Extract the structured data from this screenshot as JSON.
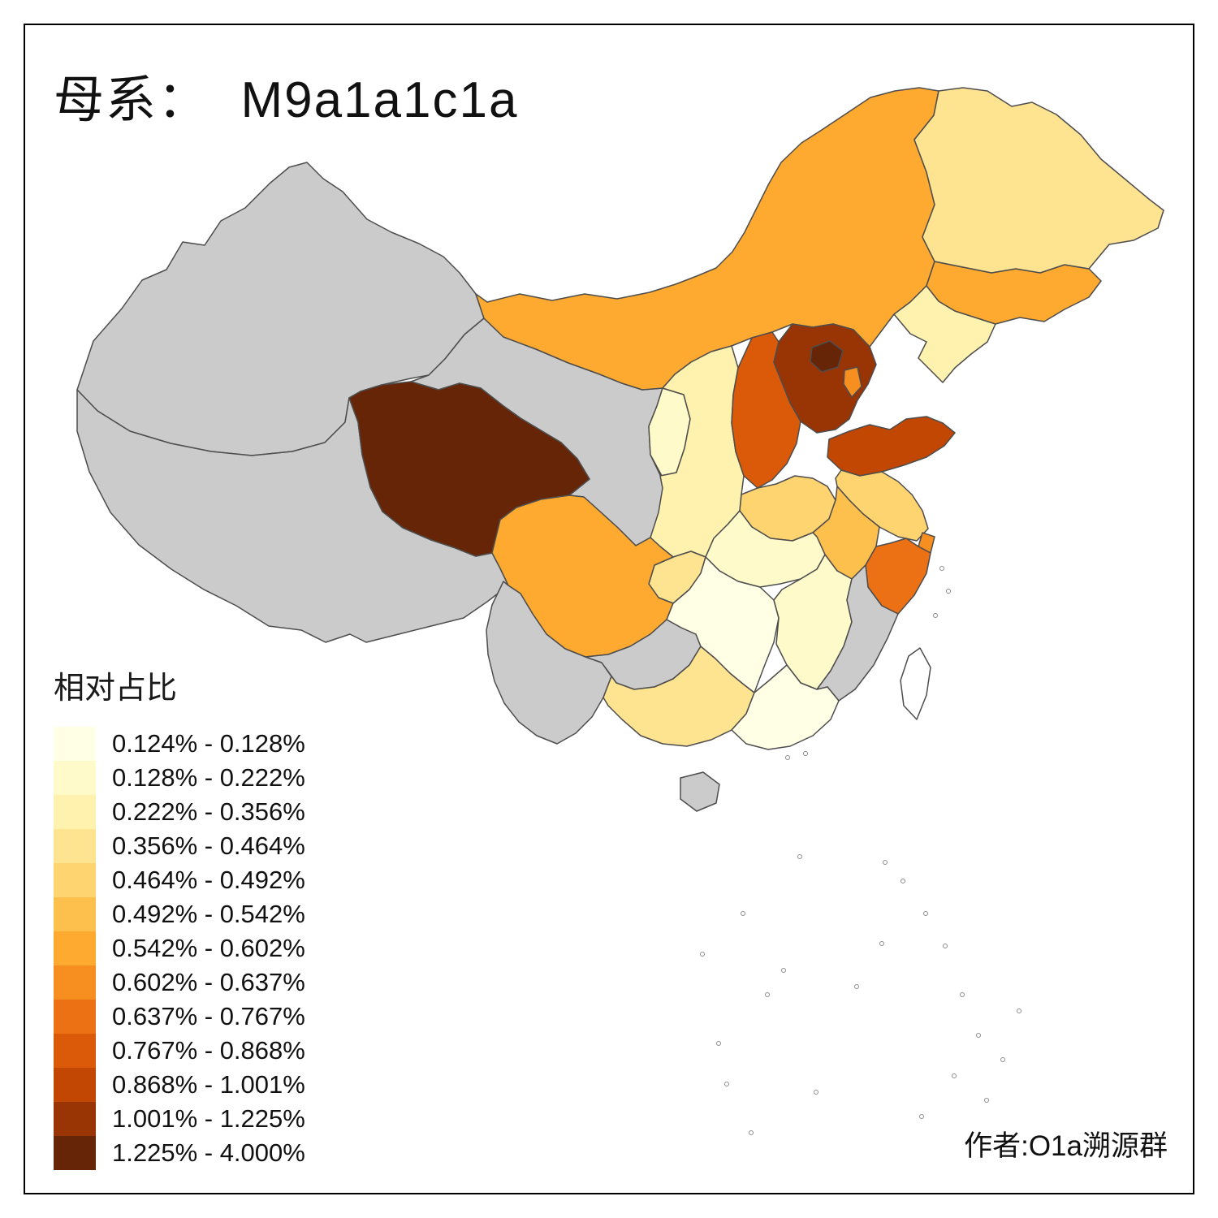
{
  "title": {
    "label": "母系：  M9a1a1c1a"
  },
  "legend": {
    "title": "相对占比",
    "bins": [
      {
        "label": "0.124% - 0.128%",
        "color": "#FFFFE5"
      },
      {
        "label": "0.128% - 0.222%",
        "color": "#FFFAC9"
      },
      {
        "label": "0.222% - 0.356%",
        "color": "#FFF2AE"
      },
      {
        "label": "0.356% - 0.464%",
        "color": "#FEE391"
      },
      {
        "label": "0.464% - 0.492%",
        "color": "#FED470"
      },
      {
        "label": "0.492% - 0.542%",
        "color": "#FEC04C"
      },
      {
        "label": "0.542% - 0.602%",
        "color": "#FEA92F"
      },
      {
        "label": "0.602% - 0.637%",
        "color": "#F78E20"
      },
      {
        "label": "0.637% - 0.767%",
        "color": "#EC7014"
      },
      {
        "label": "0.767% - 0.868%",
        "color": "#DA5A0A"
      },
      {
        "label": "0.868% - 1.001%",
        "color": "#C24702"
      },
      {
        "label": "1.001% - 1.225%",
        "color": "#993404"
      },
      {
        "label": "1.225% - 4.000%",
        "color": "#662506"
      }
    ]
  },
  "credit": {
    "label": "作者:O1a溯源群"
  },
  "map": {
    "background": "#FFFFFF",
    "no_data_color": "#CBCBCB",
    "border_color": "#4D4D4D",
    "frame_color": "#000000",
    "provinces": {
      "xinjiang": {
        "bin": null,
        "color": null
      },
      "tibet": {
        "bin": null,
        "color": null
      },
      "gansu": {
        "bin": null,
        "color": null
      },
      "qinghai": {
        "bin": "1.225% - 4.000%",
        "color": "#662506"
      },
      "inner_mongolia": {
        "bin": "0.542% - 0.602%",
        "color": "#FEA92F"
      },
      "ningxia": {
        "bin": "0.128% - 0.222%",
        "color": "#FFFAC9"
      },
      "shaanxi": {
        "bin": "0.222% - 0.356%",
        "color": "#FFF2AE"
      },
      "shanxi": {
        "bin": "0.767% - 0.868%",
        "color": "#DA5A0A"
      },
      "hebei": {
        "bin": "1.001% - 1.225%",
        "color": "#993404"
      },
      "beijing": {
        "bin": "1.225% - 4.000%",
        "color": "#662506"
      },
      "tianjin": {
        "bin": "0.602% - 0.637%",
        "color": "#F78E20"
      },
      "shandong": {
        "bin": "0.868% - 1.001%",
        "color": "#C24702"
      },
      "henan": {
        "bin": "0.464% - 0.492%",
        "color": "#FED470"
      },
      "jiangsu": {
        "bin": "0.464% - 0.492%",
        "color": "#FED470"
      },
      "anhui": {
        "bin": "0.492% - 0.542%",
        "color": "#FEC04C"
      },
      "shanghai": {
        "bin": "0.602% - 0.637%",
        "color": "#F78E20"
      },
      "zhejiang": {
        "bin": "0.637% - 0.767%",
        "color": "#EC7014"
      },
      "hubei": {
        "bin": "0.128% - 0.222%",
        "color": "#FFFAC9"
      },
      "chongqing": {
        "bin": "0.356% - 0.464%",
        "color": "#FEE391"
      },
      "sichuan": {
        "bin": "0.542% - 0.602%",
        "color": "#FEA92F"
      },
      "yunnan": {
        "bin": null,
        "color": null
      },
      "guizhou": {
        "bin": null,
        "color": null
      },
      "guangxi": {
        "bin": "0.356% - 0.464%",
        "color": "#FEE391"
      },
      "hunan": {
        "bin": "0.124% - 0.128%",
        "color": "#FFFFE5"
      },
      "jiangxi": {
        "bin": "0.128% - 0.222%",
        "color": "#FFFAC9"
      },
      "fujian": {
        "bin": null,
        "color": null
      },
      "guangdong": {
        "bin": "0.124% - 0.128%",
        "color": "#FFFFE5"
      },
      "hainan": {
        "bin": null,
        "color": null
      },
      "liaoning": {
        "bin": "0.222% - 0.356%",
        "color": "#FFF2AE"
      },
      "jilin": {
        "bin": "0.542% - 0.602%",
        "color": "#FEA92F"
      },
      "heilongjiang": {
        "bin": "0.356% - 0.464%",
        "color": "#FEE391"
      },
      "taiwan": {
        "bin": null,
        "color": "#FFFFFF"
      }
    }
  }
}
